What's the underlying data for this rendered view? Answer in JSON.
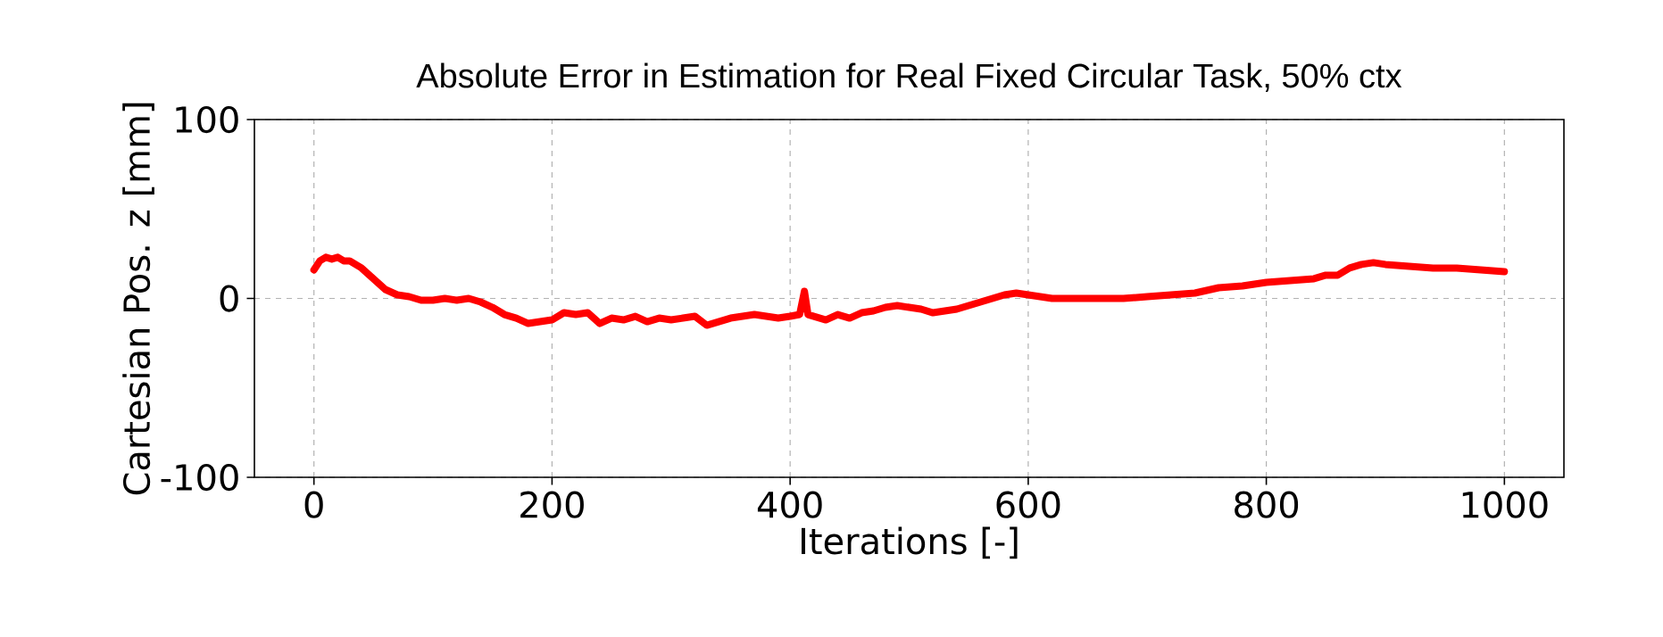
{
  "chart_data": {
    "type": "line",
    "title": "Absolute Error in Estimation for Real Fixed Circular Task, 50% ctx",
    "xlabel": "Iterations [-]",
    "ylabel": "Cartesian Pos. z [mm]",
    "x": [
      0,
      5,
      10,
      15,
      20,
      25,
      30,
      40,
      50,
      60,
      70,
      80,
      90,
      100,
      110,
      120,
      130,
      140,
      150,
      160,
      170,
      180,
      190,
      200,
      210,
      220,
      230,
      240,
      250,
      260,
      270,
      280,
      290,
      300,
      310,
      320,
      330,
      340,
      350,
      360,
      370,
      380,
      390,
      400,
      408,
      412,
      415,
      420,
      430,
      440,
      450,
      460,
      470,
      480,
      490,
      500,
      510,
      520,
      530,
      540,
      550,
      560,
      570,
      580,
      590,
      600,
      620,
      640,
      660,
      680,
      700,
      720,
      740,
      760,
      780,
      800,
      820,
      840,
      850,
      860,
      870,
      880,
      890,
      900,
      920,
      940,
      960,
      980,
      1000
    ],
    "series": [
      {
        "color": "#ff0000",
        "values": [
          16,
          21,
          23,
          22,
          23,
          21,
          21,
          17,
          11,
          5,
          2,
          1,
          -1,
          -1,
          0,
          -1,
          0,
          -2,
          -5,
          -9,
          -11,
          -14,
          -13,
          -12,
          -8,
          -9,
          -8,
          -14,
          -11,
          -12,
          -10,
          -13,
          -11,
          -12,
          -11,
          -10,
          -15,
          -13,
          -11,
          -10,
          -9,
          -10,
          -11,
          -10,
          -9,
          4,
          -9,
          -10,
          -12,
          -9,
          -11,
          -8,
          -7,
          -5,
          -4,
          -5,
          -6,
          -8,
          -7,
          -6,
          -4,
          -2,
          0,
          2,
          3,
          2,
          0,
          0,
          0,
          0,
          1,
          2,
          3,
          6,
          7,
          9,
          10,
          11,
          13,
          13,
          17,
          19,
          20,
          19,
          18,
          17,
          17,
          16,
          15
        ]
      }
    ],
    "xlim": [
      -50,
      1050
    ],
    "ylim": [
      -100,
      100
    ],
    "xticks": [
      0,
      200,
      400,
      600,
      800,
      1000
    ],
    "yticks": [
      -100,
      0,
      100
    ],
    "grid": true,
    "line_style": "solid",
    "marker": "none"
  }
}
